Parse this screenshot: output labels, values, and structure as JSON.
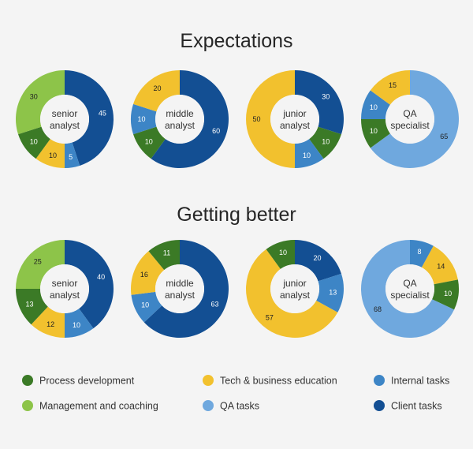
{
  "colors": {
    "process_development": "#3b7a26",
    "management_and_coaching": "#8dc449",
    "tech_business_education": "#f2c12e",
    "qa_tasks": "#6fa8de",
    "internal_tasks": "#3d85c6",
    "client_tasks": "#134f93"
  },
  "legend": [
    {
      "key": "process_development",
      "label": "Process development"
    },
    {
      "key": "management_and_coaching",
      "label": "Management and coaching"
    },
    {
      "key": "tech_business_education",
      "label": "Tech & business education"
    },
    {
      "key": "qa_tasks",
      "label": "QA tasks"
    },
    {
      "key": "internal_tasks",
      "label": "Internal tasks"
    },
    {
      "key": "client_tasks",
      "label": "Client tasks"
    }
  ],
  "chart_data": [
    {
      "type": "pie",
      "title": "Expectations",
      "charts": [
        {
          "center_label": [
            "senior",
            "analyst"
          ],
          "slices": [
            {
              "key": "client_tasks",
              "value": 45
            },
            {
              "key": "internal_tasks",
              "value": 5
            },
            {
              "key": "tech_business_education",
              "value": 10
            },
            {
              "key": "process_development",
              "value": 10
            },
            {
              "key": "management_and_coaching",
              "value": 30
            }
          ]
        },
        {
          "center_label": [
            "middle",
            "analyst"
          ],
          "slices": [
            {
              "key": "client_tasks",
              "value": 60
            },
            {
              "key": "process_development",
              "value": 10
            },
            {
              "key": "internal_tasks",
              "value": 10
            },
            {
              "key": "tech_business_education",
              "value": 20
            }
          ]
        },
        {
          "center_label": [
            "junior",
            "analyst"
          ],
          "slices": [
            {
              "key": "client_tasks",
              "value": 30
            },
            {
              "key": "process_development",
              "value": 10
            },
            {
              "key": "internal_tasks",
              "value": 10
            },
            {
              "key": "tech_business_education",
              "value": 50
            }
          ]
        },
        {
          "center_label": [
            "QA",
            "specialist"
          ],
          "slices": [
            {
              "key": "qa_tasks",
              "value": 65
            },
            {
              "key": "process_development",
              "value": 10
            },
            {
              "key": "internal_tasks",
              "value": 10
            },
            {
              "key": "tech_business_education",
              "value": 15
            }
          ]
        }
      ]
    },
    {
      "type": "pie",
      "title": "Getting better",
      "charts": [
        {
          "center_label": [
            "senior",
            "analyst"
          ],
          "slices": [
            {
              "key": "client_tasks",
              "value": 40
            },
            {
              "key": "internal_tasks",
              "value": 10
            },
            {
              "key": "tech_business_education",
              "value": 12
            },
            {
              "key": "process_development",
              "value": 13
            },
            {
              "key": "management_and_coaching",
              "value": 25
            }
          ]
        },
        {
          "center_label": [
            "middle",
            "analyst"
          ],
          "slices": [
            {
              "key": "client_tasks",
              "value": 63
            },
            {
              "key": "internal_tasks",
              "value": 10
            },
            {
              "key": "tech_business_education",
              "value": 16
            },
            {
              "key": "process_development",
              "value": 11
            }
          ]
        },
        {
          "center_label": [
            "junior",
            "analyst"
          ],
          "slices": [
            {
              "key": "client_tasks",
              "value": 20
            },
            {
              "key": "internal_tasks",
              "value": 13
            },
            {
              "key": "tech_business_education",
              "value": 57
            },
            {
              "key": "process_development",
              "value": 10
            }
          ]
        },
        {
          "center_label": [
            "QA",
            "specialist"
          ],
          "slices": [
            {
              "key": "internal_tasks",
              "value": 8
            },
            {
              "key": "tech_business_education",
              "value": 14
            },
            {
              "key": "process_development",
              "value": 10
            },
            {
              "key": "qa_tasks",
              "value": 68
            }
          ]
        }
      ]
    }
  ]
}
